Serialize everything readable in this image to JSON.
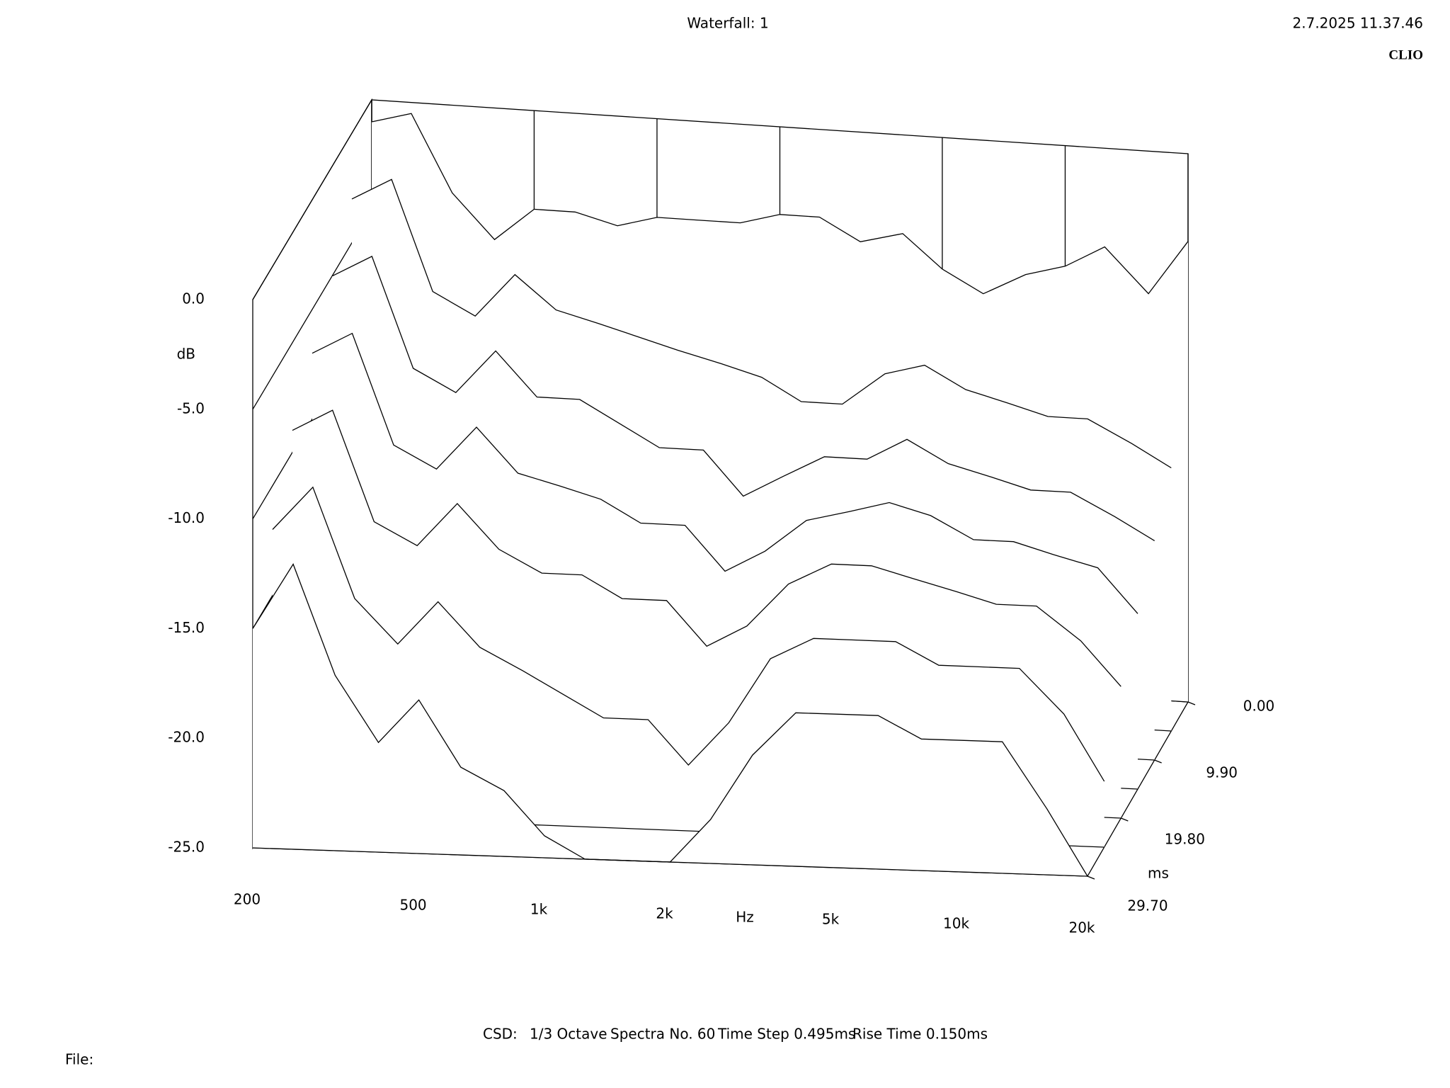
{
  "chart_data": {
    "type": "waterfall",
    "title": "Waterfall: 1",
    "timestamp": "2.7.2025 11.37.46",
    "brand": "CLIO",
    "footer": [
      "CSD:",
      "1/3 Octave",
      "Spectra No. 60",
      "Time Step 0.495ms",
      "Rise Time 0.150ms"
    ],
    "file_label": "File:",
    "xlabel": "Hz",
    "ylabel": "dB",
    "zlabel": "ms",
    "xscale": "log",
    "color": "#000000",
    "xlim": [
      200,
      20000
    ],
    "xticks": [
      200,
      500,
      {
        "value": 1000,
        "label": "1k"
      },
      {
        "value": 2000,
        "label": "2k"
      },
      {
        "value": 5000,
        "label": "5k"
      },
      {
        "value": 10000,
        "label": "10k"
      },
      {
        "value": 20000,
        "label": "20k"
      }
    ],
    "ylim": [
      -25,
      0
    ],
    "yticks": [
      {
        "value": 0,
        "label": "0.0"
      },
      {
        "value": -5,
        "label": "-5.0"
      },
      {
        "value": -10,
        "label": "-10.0"
      },
      {
        "value": -15,
        "label": "-15.0"
      },
      {
        "value": -20,
        "label": "-20.0"
      },
      {
        "value": -25,
        "label": "-25.0"
      }
    ],
    "zlim": [
      0,
      29.7
    ],
    "zticks": [
      {
        "value": 0,
        "label": "0.00"
      },
      {
        "value": 9.9,
        "label": "9.90"
      },
      {
        "value": 19.8,
        "label": "19.80"
      },
      {
        "value": 29.7,
        "label": "29.70"
      }
    ],
    "x": [
      200,
      250,
      315,
      400,
      500,
      630,
      800,
      1000,
      1250,
      1600,
      2000,
      2500,
      3150,
      4000,
      5000,
      6300,
      8000,
      10000,
      12500,
      16000,
      20000
    ],
    "series": [
      {
        "time": 0,
        "values": [
          -1,
          -0.5,
          -4,
          -6,
          -4.5,
          -4.5,
          -5,
          -4.5,
          -4.5,
          -4.5,
          -4,
          -4,
          -5,
          -4.5,
          -6,
          -7,
          -6,
          -5.5,
          -4.5,
          -6.5,
          -4
        ]
      },
      {
        "time": 4.95,
        "values": [
          -3,
          -2,
          -7,
          -8,
          -6,
          -7.5,
          -8,
          -8.5,
          -9,
          -9.5,
          -10,
          -11,
          -11,
          -9.5,
          -9,
          -10,
          -10.5,
          -11,
          -11,
          -12,
          -13
        ]
      },
      {
        "time": 9.9,
        "values": [
          -5,
          -4,
          -9,
          -10,
          -8,
          -10,
          -10,
          -11,
          -12,
          -12,
          -14,
          -13,
          -12,
          -12,
          -11,
          -12,
          -12.5,
          -13,
          -13,
          -14,
          -15
        ]
      },
      {
        "time": 14.85,
        "values": [
          -7,
          -6,
          -11,
          -12,
          -10,
          -12,
          -12.5,
          -13,
          -14,
          -14,
          -16,
          -15,
          -13.5,
          -13,
          -12.5,
          -13,
          -14,
          -14,
          -14.5,
          -15,
          -17
        ]
      },
      {
        "time": 19.8,
        "values": [
          -9,
          -8,
          -13,
          -14,
          -12,
          -14,
          -15,
          -15,
          -16,
          -16,
          -18,
          -17,
          -15,
          -14,
          -14,
          -14.5,
          -15,
          -15.5,
          -15.5,
          -17,
          -19
        ]
      },
      {
        "time": 24.75,
        "values": [
          -12,
          -10,
          -15,
          -17,
          -15,
          -17,
          -18,
          -19,
          -20,
          -20,
          -22,
          -20,
          -17,
          -16,
          -16,
          -16,
          -17,
          -17,
          -17,
          -19,
          -22
        ]
      },
      {
        "time": 29.7,
        "values": [
          -15,
          -12,
          -17,
          -20,
          -18,
          -21,
          -22,
          -24,
          -25,
          -25,
          -25,
          -23,
          -20,
          -18,
          -18,
          -18,
          -19,
          -19,
          -19,
          -22,
          -25
        ]
      }
    ]
  }
}
